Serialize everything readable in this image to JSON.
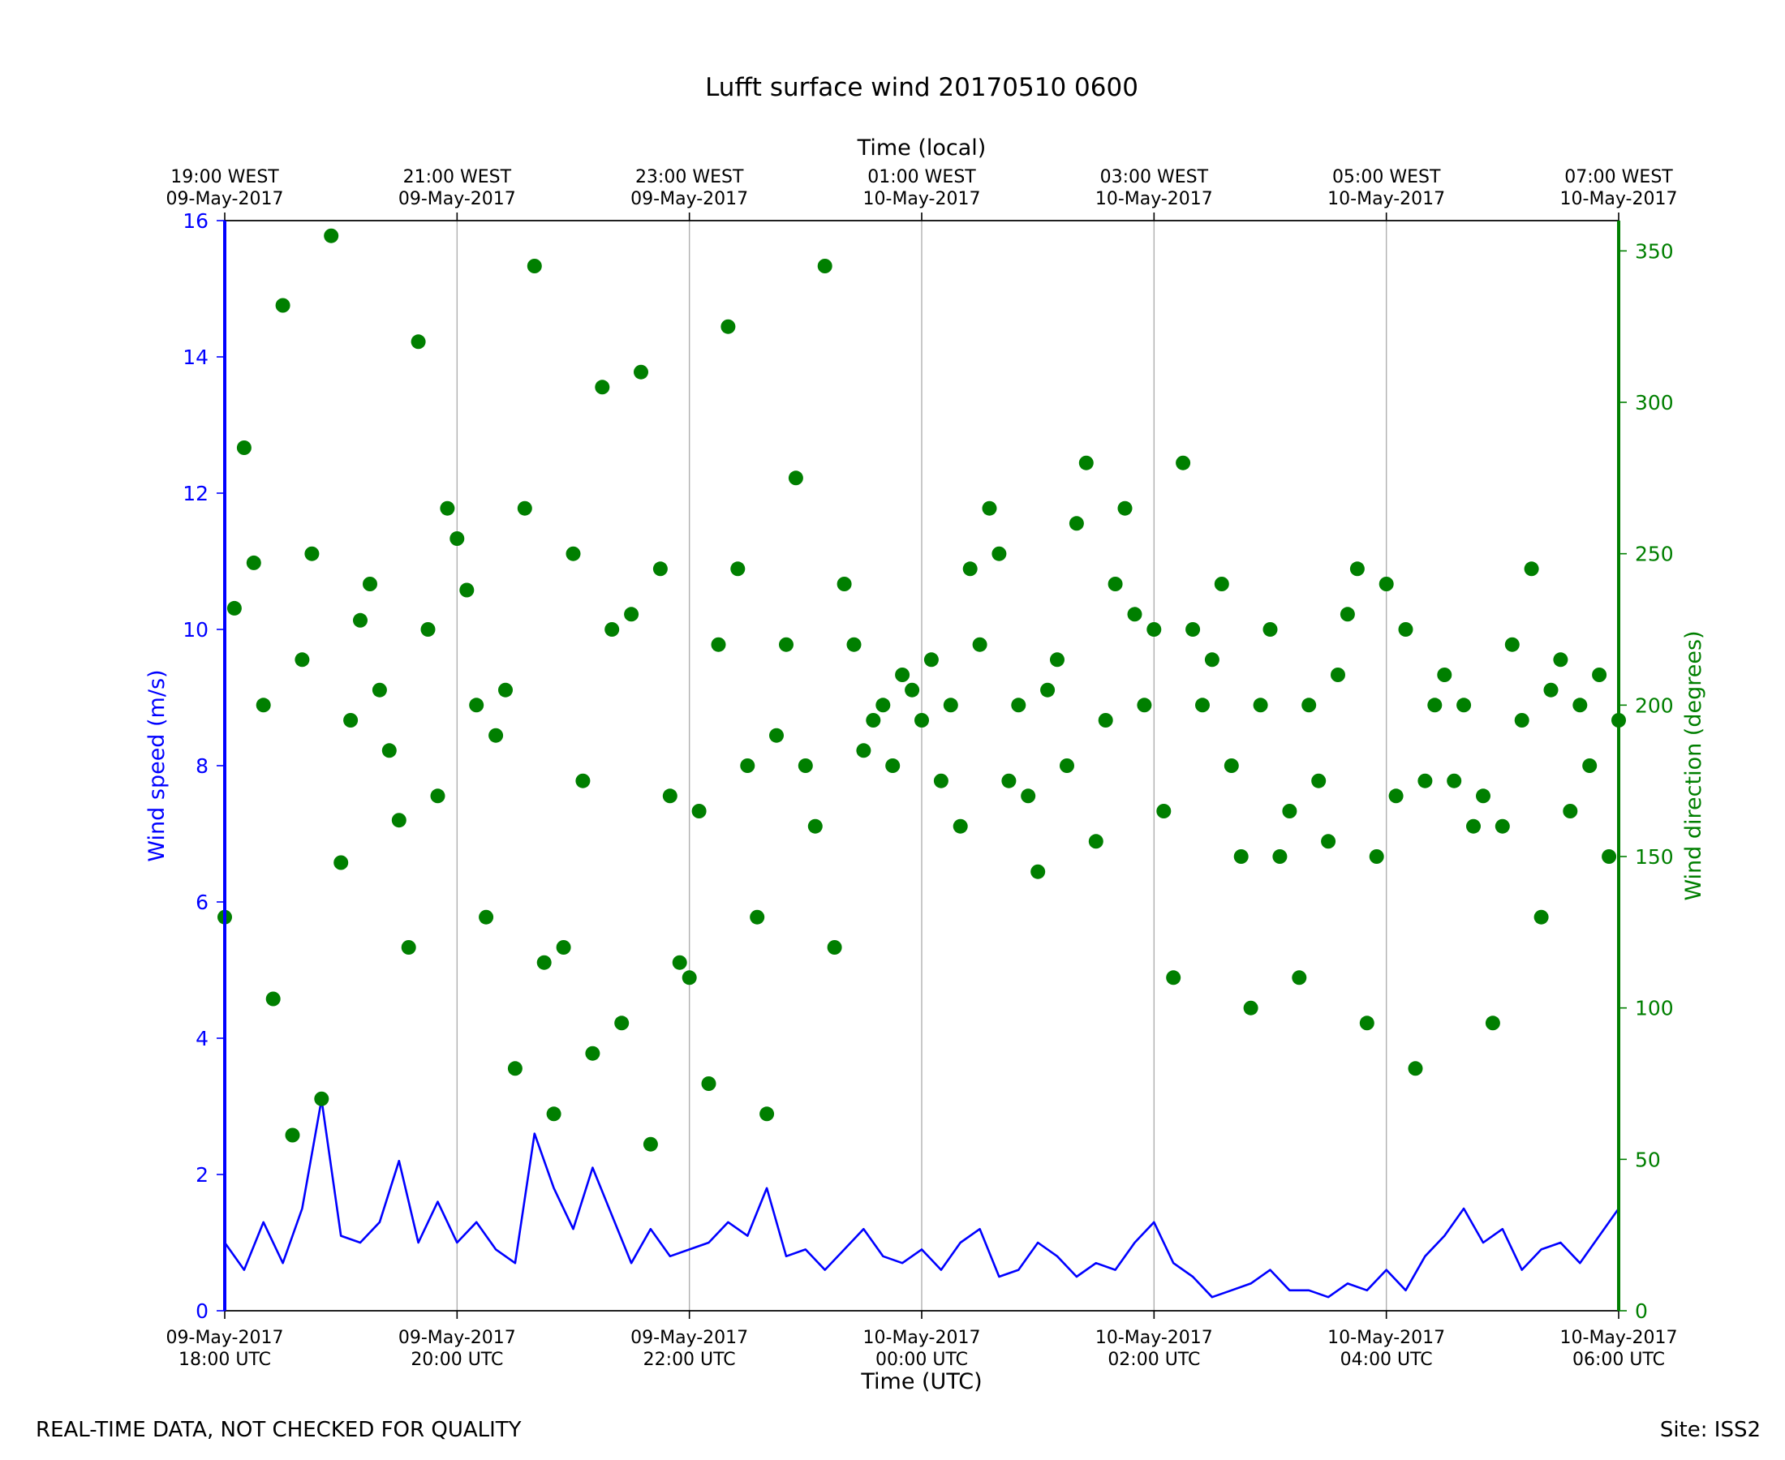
{
  "chart_data": {
    "type": "line+scatter",
    "title": "Lufft surface wind 20170510 0600",
    "xlabel": "Time (UTC)",
    "x2label": "Time (local)",
    "ylabel": "Wind speed (m/s)",
    "y2label": "Wind direction (degrees)",
    "xlim": [
      "2017-05-09T18:00",
      "2017-05-10T06:00"
    ],
    "ylim": [
      0,
      16
    ],
    "y2lim": [
      0,
      360
    ],
    "grid": "vertical",
    "x_ticks": [
      {
        "date": "09-May-2017",
        "time": "18:00 UTC"
      },
      {
        "date": "09-May-2017",
        "time": "20:00 UTC"
      },
      {
        "date": "09-May-2017",
        "time": "22:00 UTC"
      },
      {
        "date": "10-May-2017",
        "time": "00:00 UTC"
      },
      {
        "date": "10-May-2017",
        "time": "02:00 UTC"
      },
      {
        "date": "10-May-2017",
        "time": "04:00 UTC"
      },
      {
        "date": "10-May-2017",
        "time": "06:00 UTC"
      }
    ],
    "x2_ticks": [
      {
        "time": "19:00 WEST",
        "date": "09-May-2017"
      },
      {
        "time": "21:00 WEST",
        "date": "09-May-2017"
      },
      {
        "time": "23:00 WEST",
        "date": "09-May-2017"
      },
      {
        "time": "01:00 WEST",
        "date": "10-May-2017"
      },
      {
        "time": "03:00 WEST",
        "date": "10-May-2017"
      },
      {
        "time": "05:00 WEST",
        "date": "10-May-2017"
      },
      {
        "time": "07:00 WEST",
        "date": "10-May-2017"
      }
    ],
    "y_ticks": [
      "0",
      "2",
      "4",
      "6",
      "8",
      "10",
      "12",
      "14",
      "16"
    ],
    "y2_ticks": [
      "0",
      "50",
      "100",
      "150",
      "200",
      "250",
      "300",
      "350"
    ],
    "series": [
      {
        "name": "Wind speed (m/s)",
        "axis": "left",
        "style": "line",
        "color": "#0000ff",
        "x": [
          "18:00",
          "18:10",
          "18:20",
          "18:30",
          "18:40",
          "18:50",
          "19:00",
          "19:10",
          "19:20",
          "19:30",
          "19:40",
          "19:50",
          "20:00",
          "20:10",
          "20:20",
          "20:30",
          "20:40",
          "20:50",
          "21:00",
          "21:10",
          "21:20",
          "21:30",
          "21:40",
          "21:50",
          "22:00",
          "22:10",
          "22:20",
          "22:30",
          "22:40",
          "22:50",
          "23:00",
          "23:10",
          "23:20",
          "23:30",
          "23:40",
          "23:50",
          "00:00",
          "00:10",
          "00:20",
          "00:30",
          "00:40",
          "00:50",
          "01:00",
          "01:10",
          "01:20",
          "01:30",
          "01:40",
          "01:50",
          "02:00",
          "02:10",
          "02:20",
          "02:30",
          "02:40",
          "02:50",
          "03:00",
          "03:10",
          "03:20",
          "03:30",
          "03:40",
          "03:50",
          "04:00",
          "04:10",
          "04:20",
          "04:30",
          "04:40",
          "04:50",
          "05:00",
          "05:10",
          "05:20",
          "05:30",
          "05:40",
          "05:50",
          "06:00"
        ],
        "y": [
          1.0,
          0.6,
          1.3,
          0.7,
          1.5,
          3.1,
          1.1,
          1.0,
          1.3,
          2.2,
          1.0,
          1.6,
          1.0,
          1.3,
          0.9,
          0.7,
          2.6,
          1.8,
          1.2,
          2.1,
          1.4,
          0.7,
          1.2,
          0.8,
          0.9,
          1.0,
          1.3,
          1.1,
          1.8,
          0.8,
          0.9,
          0.6,
          0.9,
          1.2,
          0.8,
          0.7,
          0.9,
          0.6,
          1.0,
          1.2,
          0.5,
          0.6,
          1.0,
          0.8,
          0.5,
          0.7,
          0.6,
          1.0,
          1.3,
          0.7,
          0.5,
          0.2,
          0.3,
          0.4,
          0.6,
          0.3,
          0.3,
          0.2,
          0.4,
          0.3,
          0.6,
          0.3,
          0.8,
          1.1,
          1.5,
          1.0,
          1.2,
          0.6,
          0.9,
          1.0,
          0.7,
          1.1,
          1.5
        ]
      },
      {
        "name": "Wind direction (degrees)",
        "axis": "right",
        "style": "markers",
        "color": "#007f00",
        "x": [
          "18:00",
          "18:05",
          "18:10",
          "18:15",
          "18:20",
          "18:25",
          "18:30",
          "18:35",
          "18:40",
          "18:45",
          "18:50",
          "18:55",
          "19:00",
          "19:05",
          "19:10",
          "19:15",
          "19:20",
          "19:25",
          "19:30",
          "19:35",
          "19:40",
          "19:45",
          "19:50",
          "19:55",
          "20:00",
          "20:05",
          "20:10",
          "20:15",
          "20:20",
          "20:25",
          "20:30",
          "20:35",
          "20:40",
          "20:45",
          "20:50",
          "20:55",
          "21:00",
          "21:05",
          "21:10",
          "21:15",
          "21:20",
          "21:25",
          "21:30",
          "21:35",
          "21:40",
          "21:45",
          "21:50",
          "21:55",
          "22:00",
          "22:05",
          "22:10",
          "22:15",
          "22:20",
          "22:25",
          "22:30",
          "22:35",
          "22:40",
          "22:45",
          "22:50",
          "22:55",
          "23:00",
          "23:05",
          "23:10",
          "23:15",
          "23:20",
          "23:25",
          "23:30",
          "23:35",
          "23:40",
          "23:45",
          "23:50",
          "23:55",
          "00:00",
          "00:05",
          "00:10",
          "00:15",
          "00:20",
          "00:25",
          "00:30",
          "00:35",
          "00:40",
          "00:45",
          "00:50",
          "00:55",
          "01:00",
          "01:05",
          "01:10",
          "01:15",
          "01:20",
          "01:25",
          "01:30",
          "01:35",
          "01:40",
          "01:45",
          "01:50",
          "01:55",
          "02:00",
          "02:05",
          "02:10",
          "02:15",
          "02:20",
          "02:25",
          "02:30",
          "02:35",
          "02:40",
          "02:45",
          "02:50",
          "02:55",
          "03:00",
          "03:05",
          "03:10",
          "03:15",
          "03:20",
          "03:25",
          "03:30",
          "03:35",
          "03:40",
          "03:45",
          "03:50",
          "03:55",
          "04:00",
          "04:05",
          "04:10",
          "04:15",
          "04:20",
          "04:25",
          "04:30",
          "04:35",
          "04:40",
          "04:45",
          "04:50",
          "04:55",
          "05:00",
          "05:05",
          "05:10",
          "05:15",
          "05:20",
          "05:25",
          "05:30",
          "05:35",
          "05:40",
          "05:45",
          "05:50",
          "05:55",
          "06:00"
        ],
        "y": [
          130,
          232,
          285,
          247,
          200,
          103,
          332,
          58,
          215,
          250,
          70,
          355,
          148,
          195,
          228,
          240,
          205,
          185,
          162,
          120,
          320,
          225,
          170,
          265,
          255,
          238,
          200,
          130,
          190,
          205,
          80,
          265,
          345,
          115,
          65,
          120,
          250,
          175,
          85,
          305,
          225,
          95,
          230,
          310,
          55,
          245,
          170,
          115,
          110,
          165,
          75,
          220,
          325,
          245,
          180,
          130,
          65,
          190,
          220,
          275,
          180,
          160,
          345,
          120,
          240,
          220,
          185,
          195,
          200,
          180,
          210,
          205,
          195,
          215,
          175,
          200,
          160,
          245,
          220,
          265,
          250,
          175,
          200,
          170,
          145,
          205,
          215,
          180,
          260,
          280,
          155,
          195,
          240,
          265,
          230,
          200,
          225,
          165,
          110,
          280,
          225,
          200,
          215,
          240,
          180,
          150,
          100,
          200,
          225,
          150,
          165,
          110,
          200,
          175,
          155,
          210,
          230,
          245,
          95,
          150,
          240,
          170,
          225,
          80,
          175,
          200,
          210,
          175,
          200,
          160,
          170,
          95,
          160,
          220,
          195,
          245,
          130,
          205,
          215,
          165,
          200,
          180,
          210,
          150,
          195
        ]
      }
    ]
  },
  "footer": {
    "note": "REAL-TIME DATA, NOT CHECKED FOR QUALITY",
    "site": "Site: ISS2"
  }
}
